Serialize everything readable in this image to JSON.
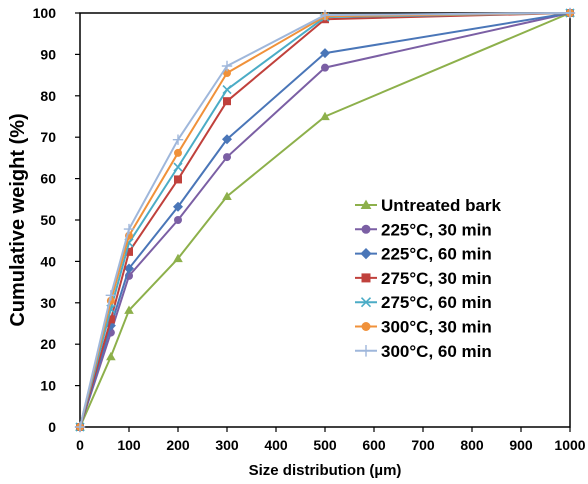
{
  "chart_data": {
    "type": "line",
    "title": "",
    "xlabel": "Size distribution (µm)",
    "ylabel": "Cumulative weight (%)",
    "xlim": [
      0,
      1000
    ],
    "ylim": [
      0,
      100
    ],
    "xticks": [
      "0",
      "100",
      "200",
      "300",
      "400",
      "500",
      "600",
      "700",
      "800",
      "900",
      "1000"
    ],
    "yticks": [
      "0",
      "10",
      "20",
      "30",
      "40",
      "50",
      "60",
      "70",
      "80",
      "90",
      "100"
    ],
    "grid": false,
    "legend_position": "center-right",
    "x": [
      0,
      63,
      100,
      200,
      300,
      500,
      1000
    ],
    "series": [
      {
        "name": "Untreated  bark",
        "values": [
          0,
          17,
          28.2,
          40.7,
          55.7,
          75,
          100
        ],
        "color": "#8db04b",
        "marker": "triangle"
      },
      {
        "name": "225°C, 30 min",
        "values": [
          0,
          22.8,
          36.5,
          50,
          65.2,
          86.8,
          100
        ],
        "color": "#7b5fa4",
        "marker": "circle"
      },
      {
        "name": "225°C, 60 min",
        "values": [
          0,
          24.5,
          38.3,
          53.2,
          69.5,
          90.3,
          100
        ],
        "color": "#4a76b8",
        "marker": "diamond"
      },
      {
        "name": "275°C, 30 min",
        "values": [
          0,
          26,
          42.3,
          59.8,
          78.7,
          98.5,
          100
        ],
        "color": "#c0413c",
        "marker": "square"
      },
      {
        "name": "275°C, 60 min",
        "values": [
          0,
          28.5,
          44.5,
          62.8,
          81.5,
          99,
          100
        ],
        "color": "#4bacc6",
        "marker": "x"
      },
      {
        "name": "300°C, 30 min",
        "values": [
          0,
          30.5,
          46.2,
          66.2,
          85.5,
          99.2,
          100
        ],
        "color": "#f0913a",
        "marker": "circle"
      },
      {
        "name": "300°C, 60 min",
        "values": [
          0,
          31.8,
          47.8,
          69.4,
          87.2,
          99.5,
          100
        ],
        "color": "#9fb7db",
        "marker": "plus"
      }
    ]
  }
}
